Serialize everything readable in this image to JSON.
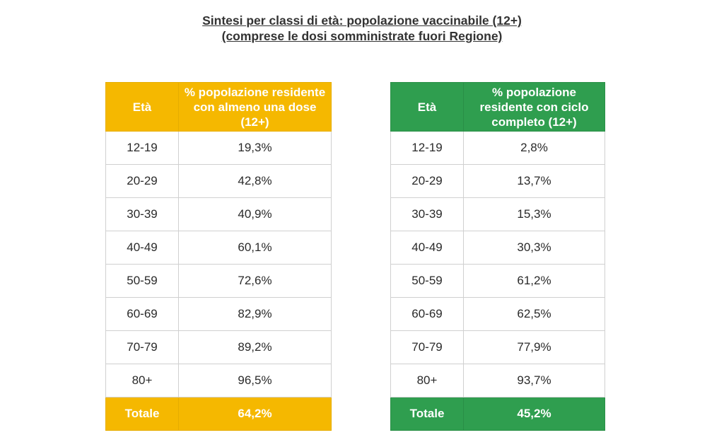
{
  "title": {
    "line1": "Sintesi per classi di età: popolazione vaccinabile (12+)",
    "line2": "(comprese le dosi somministrate fuori Regione)"
  },
  "colors": {
    "left_header": "#f5b800",
    "right_header": "#2f9e4f"
  },
  "left_table": {
    "header_age": "Età",
    "header_pct": "% popolazione residente con almeno una dose (12+)",
    "rows": [
      {
        "age": "12-19",
        "pct": "19,3%"
      },
      {
        "age": "20-29",
        "pct": "42,8%"
      },
      {
        "age": "30-39",
        "pct": "40,9%"
      },
      {
        "age": "40-49",
        "pct": "60,1%"
      },
      {
        "age": "50-59",
        "pct": "72,6%"
      },
      {
        "age": "60-69",
        "pct": "82,9%"
      },
      {
        "age": "70-79",
        "pct": "89,2%"
      },
      {
        "age": "80+",
        "pct": "96,5%"
      }
    ],
    "total_label": "Totale",
    "total_pct": "64,2%"
  },
  "right_table": {
    "header_age": "Età",
    "header_pct": "% popolazione residente con ciclo completo (12+)",
    "rows": [
      {
        "age": "12-19",
        "pct": "2,8%"
      },
      {
        "age": "20-29",
        "pct": "13,7%"
      },
      {
        "age": "30-39",
        "pct": "15,3%"
      },
      {
        "age": "40-49",
        "pct": "30,3%"
      },
      {
        "age": "50-59",
        "pct": "61,2%"
      },
      {
        "age": "60-69",
        "pct": "62,5%"
      },
      {
        "age": "70-79",
        "pct": "77,9%"
      },
      {
        "age": "80+",
        "pct": "93,7%"
      }
    ],
    "total_label": "Totale",
    "total_pct": "45,2%"
  }
}
